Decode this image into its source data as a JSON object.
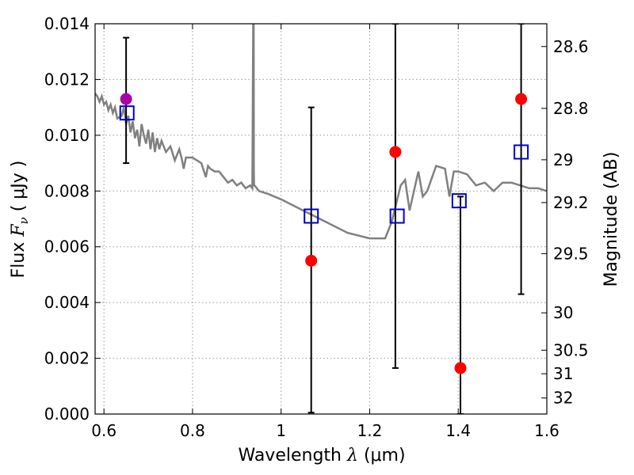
{
  "chart_data": {
    "type": "scatter",
    "xlabel": "Wavelength",
    "xlabel_symbol": "λ",
    "xlabel_unit": "(μm)",
    "ylabel": "Flux",
    "ylabel_symbol": "F",
    "ylabel_subscript": "ν",
    "ylabel_unit": "( μJy )",
    "y2label": "Magnitude (AB)",
    "xlim": [
      0.58,
      1.6
    ],
    "ylim": [
      0.0,
      0.014
    ],
    "grid": true,
    "x_ticks": [
      0.6,
      0.8,
      1.0,
      1.2,
      1.4,
      1.6
    ],
    "x_tick_labels": [
      "0.6",
      "0.8",
      "1",
      "1.2",
      "1.4",
      "1.6"
    ],
    "y_ticks": [
      0.0,
      0.002,
      0.004,
      0.006,
      0.008,
      0.01,
      0.012,
      0.014
    ],
    "y_tick_labels": [
      "0.000",
      "0.002",
      "0.004",
      "0.006",
      "0.008",
      "0.010",
      "0.012",
      "0.014"
    ],
    "y2_ticks": [
      28.6,
      28.8,
      29.0,
      29.2,
      29.5,
      30.0,
      30.5,
      31.0,
      32.0
    ],
    "y2_tick_labels": [
      "28.6",
      "28.8",
      "29",
      "29.2",
      "29.5",
      "30",
      "30.5",
      "31",
      "32"
    ],
    "colors": {
      "model": "#808080",
      "observed": "#ff0000",
      "observed_first": "#aa00aa",
      "model_flux": "#0000cc",
      "errorbar": "#000000",
      "grid": "#999999"
    },
    "model_spectrum": {
      "x": [
        0.58,
        0.585,
        0.59,
        0.595,
        0.6,
        0.605,
        0.61,
        0.615,
        0.62,
        0.625,
        0.63,
        0.64,
        0.645,
        0.65,
        0.655,
        0.66,
        0.665,
        0.67,
        0.675,
        0.68,
        0.685,
        0.69,
        0.695,
        0.7,
        0.705,
        0.71,
        0.715,
        0.72,
        0.725,
        0.73,
        0.74,
        0.75,
        0.76,
        0.77,
        0.775,
        0.78,
        0.785,
        0.79,
        0.8,
        0.81,
        0.82,
        0.83,
        0.835,
        0.84,
        0.85,
        0.86,
        0.87,
        0.88,
        0.89,
        0.9,
        0.91,
        0.92,
        0.93,
        0.935,
        0.937,
        0.938,
        0.9385,
        0.939,
        0.94,
        0.95,
        0.97,
        1.0,
        1.05,
        1.1,
        1.15,
        1.2,
        1.235,
        1.25,
        1.27,
        1.28,
        1.29,
        1.31,
        1.32,
        1.33,
        1.35,
        1.37,
        1.38,
        1.39,
        1.4,
        1.42,
        1.44,
        1.46,
        1.48,
        1.5,
        1.52,
        1.54,
        1.56,
        1.58,
        1.6
      ],
      "y": [
        0.0115,
        0.0114,
        0.0112,
        0.0114,
        0.0111,
        0.0112,
        0.0109,
        0.0111,
        0.0108,
        0.011,
        0.0106,
        0.0107,
        0.011,
        0.0104,
        0.0107,
        0.0101,
        0.0105,
        0.0099,
        0.0102,
        0.0096,
        0.0104,
        0.01,
        0.0097,
        0.0102,
        0.0095,
        0.0101,
        0.0094,
        0.0099,
        0.0095,
        0.0098,
        0.0094,
        0.0096,
        0.0091,
        0.0095,
        0.0092,
        0.0088,
        0.0092,
        0.0092,
        0.0092,
        0.0091,
        0.009,
        0.0085,
        0.0089,
        0.0088,
        0.0087,
        0.0087,
        0.0085,
        0.0083,
        0.0084,
        0.0082,
        0.0083,
        0.0081,
        0.0082,
        0.0081,
        0.014,
        0.014,
        0.0087,
        0.0082,
        0.0082,
        0.008,
        0.0079,
        0.0077,
        0.0073,
        0.0069,
        0.0065,
        0.0063,
        0.0063,
        0.0069,
        0.0082,
        0.0084,
        0.0073,
        0.0087,
        0.0078,
        0.008,
        0.0089,
        0.0088,
        0.0078,
        0.0087,
        0.0087,
        0.0086,
        0.0082,
        0.0083,
        0.008,
        0.0083,
        0.0083,
        0.0082,
        0.0081,
        0.0081,
        0.008
      ]
    },
    "observed": {
      "x": [
        0.65,
        1.068,
        1.258,
        1.405,
        1.542
      ],
      "y": [
        0.0113,
        0.0055,
        0.0094,
        0.00165,
        0.0113
      ],
      "yerr_low": [
        0.009,
        5e-05,
        0.00165,
        0.0,
        0.0043
      ],
      "yerr_high": [
        0.0135,
        0.011,
        0.014,
        0.0078,
        0.014
      ]
    },
    "model_flux": {
      "x": [
        0.652,
        1.068,
        1.262,
        1.402,
        1.542
      ],
      "y": [
        0.0108,
        0.0071,
        0.0071,
        0.00765,
        0.0094
      ]
    }
  }
}
